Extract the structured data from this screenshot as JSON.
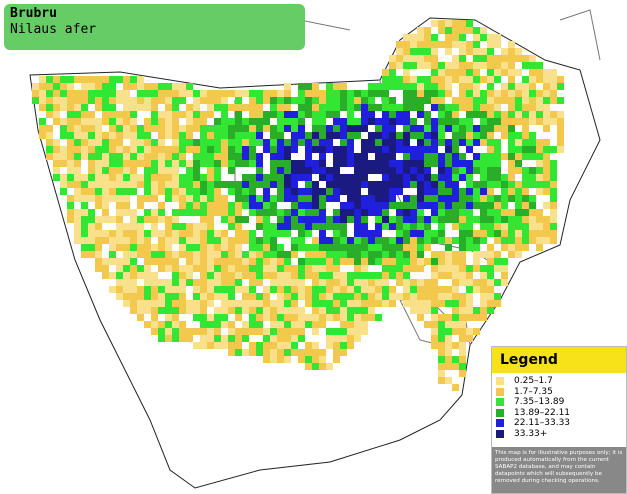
{
  "header": {
    "title": "Brubru",
    "subtitle": "Nilaus afer"
  },
  "legend": {
    "title": "Legend",
    "items": [
      {
        "label": "0.25–1.7",
        "color": "#f9e08a"
      },
      {
        "label": "1.7–7.35",
        "color": "#f2c94c"
      },
      {
        "label": "7.35–13.89",
        "color": "#33e633"
      },
      {
        "label": "13.89–22.11",
        "color": "#2aae2a"
      },
      {
        "label": "22.11–33.33",
        "color": "#1f1fdc"
      },
      {
        "label": "33.33+",
        "color": "#1a1a80"
      }
    ],
    "disclaimer": "This map is for illustrative purposes only; it is produced automatically from the current SABAP2 database, and may contain datapoints which will subsequently be removed during checking operations."
  }
}
